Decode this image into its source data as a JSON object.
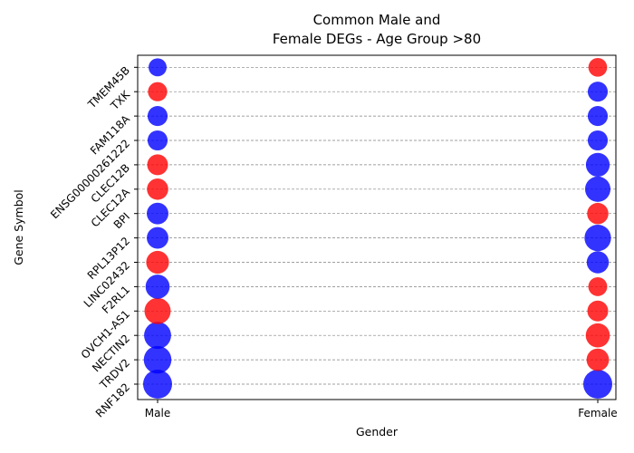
{
  "chart_data": {
    "type": "scatter",
    "title_lines": [
      "Common Male and",
      "Female DEGs - Age Group >80"
    ],
    "xlabel": "Gender",
    "ylabel": "Gene Symbol",
    "categories": [
      "Male",
      "Female"
    ],
    "genes": [
      "RNF182",
      "TRDV2",
      "NECTIN2",
      "OVCH1-AS1",
      "F2RL1",
      "LINC02432",
      "RPL13P12",
      "BPI",
      "CLEC12A",
      "CLEC12B",
      "ENSG00000261222",
      "FAM118A",
      "TXK",
      "TMEM45B"
    ],
    "grid": "horizontal dashed",
    "colors": {
      "up": "#ff0000",
      "down": "#0000ff"
    },
    "marker_opacity": 0.8,
    "points": {
      "Male": [
        {
          "gene": "RNF182",
          "direction": "down",
          "magnitude": 1.0
        },
        {
          "gene": "TRDV2",
          "direction": "down",
          "magnitude": 0.92
        },
        {
          "gene": "NECTIN2",
          "direction": "down",
          "magnitude": 0.88
        },
        {
          "gene": "OVCH1-AS1",
          "direction": "up",
          "magnitude": 0.83
        },
        {
          "gene": "F2RL1",
          "direction": "down",
          "magnitude": 0.7
        },
        {
          "gene": "LINC02432",
          "direction": "up",
          "magnitude": 0.62
        },
        {
          "gene": "RPL13P12",
          "direction": "down",
          "magnitude": 0.55
        },
        {
          "gene": "BPI",
          "direction": "down",
          "magnitude": 0.55
        },
        {
          "gene": "CLEC12A",
          "direction": "up",
          "magnitude": 0.53
        },
        {
          "gene": "CLEC12B",
          "direction": "up",
          "magnitude": 0.5
        },
        {
          "gene": "ENSG00000261222",
          "direction": "down",
          "magnitude": 0.45
        },
        {
          "gene": "FAM118A",
          "direction": "down",
          "magnitude": 0.45
        },
        {
          "gene": "TXK",
          "direction": "up",
          "magnitude": 0.4
        },
        {
          "gene": "TMEM45B",
          "direction": "down",
          "magnitude": 0.33
        }
      ],
      "Female": [
        {
          "gene": "RNF182",
          "direction": "down",
          "magnitude": 1.0
        },
        {
          "gene": "TRDV2",
          "direction": "up",
          "magnitude": 0.6
        },
        {
          "gene": "NECTIN2",
          "direction": "up",
          "magnitude": 0.7
        },
        {
          "gene": "OVCH1-AS1",
          "direction": "up",
          "magnitude": 0.5
        },
        {
          "gene": "F2RL1",
          "direction": "up",
          "magnitude": 0.38
        },
        {
          "gene": "LINC02432",
          "direction": "down",
          "magnitude": 0.58
        },
        {
          "gene": "RPL13P12",
          "direction": "down",
          "magnitude": 0.85
        },
        {
          "gene": "BPI",
          "direction": "up",
          "magnitude": 0.53
        },
        {
          "gene": "CLEC12A",
          "direction": "down",
          "magnitude": 0.78
        },
        {
          "gene": "CLEC12B",
          "direction": "down",
          "magnitude": 0.68
        },
        {
          "gene": "ENSG00000261222",
          "direction": "down",
          "magnitude": 0.45
        },
        {
          "gene": "FAM118A",
          "direction": "down",
          "magnitude": 0.45
        },
        {
          "gene": "TXK",
          "direction": "down",
          "magnitude": 0.45
        },
        {
          "gene": "TMEM45B",
          "direction": "up",
          "magnitude": 0.37
        }
      ]
    }
  }
}
